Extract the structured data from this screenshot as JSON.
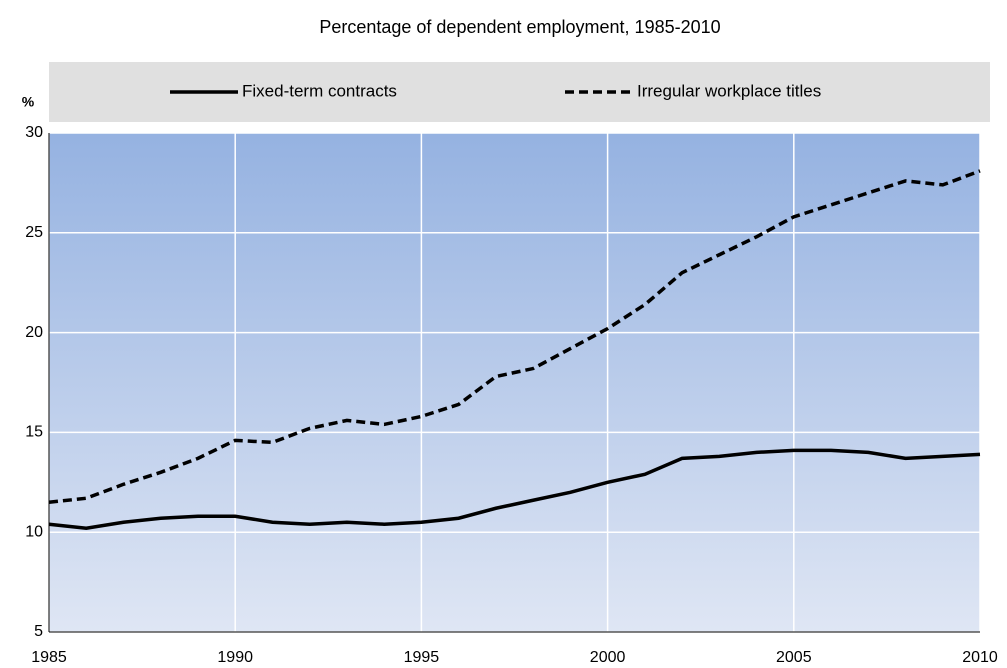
{
  "chart_data": {
    "type": "line",
    "title": "Percentage of dependent employment, 1985-2010",
    "y_label": "%",
    "x": [
      1985,
      1986,
      1987,
      1988,
      1989,
      1990,
      1991,
      1992,
      1993,
      1994,
      1995,
      1996,
      1997,
      1998,
      1999,
      2000,
      2001,
      2002,
      2003,
      2004,
      2005,
      2006,
      2007,
      2008,
      2009,
      2010
    ],
    "series": [
      {
        "name": "Fixed-term contracts",
        "color": "#000000",
        "dash": "solid",
        "values": [
          10.4,
          10.2,
          10.5,
          10.7,
          10.8,
          10.8,
          10.5,
          10.4,
          10.5,
          10.4,
          10.5,
          10.7,
          11.2,
          11.6,
          12.0,
          12.5,
          12.9,
          13.7,
          13.8,
          14.0,
          14.1,
          14.1,
          14.0,
          13.7,
          13.8,
          13.9
        ]
      },
      {
        "name": "Irregular workplace titles",
        "color": "#000000",
        "dash": "dashed",
        "values": [
          11.5,
          11.7,
          12.4,
          13.0,
          13.7,
          14.6,
          14.5,
          15.2,
          15.6,
          15.4,
          15.8,
          16.4,
          17.8,
          18.2,
          19.2,
          20.2,
          21.4,
          23.0,
          23.9,
          24.8,
          25.8,
          26.4,
          27.0,
          27.6,
          27.4,
          28.1
        ]
      }
    ],
    "xlim": [
      1985,
      2010
    ],
    "xticks": [
      1985,
      1990,
      1995,
      2000,
      2005,
      2010
    ],
    "ylim": [
      5,
      30
    ],
    "yticks": [
      5,
      10,
      15,
      20,
      25,
      30
    ],
    "grid": true,
    "legend": "top"
  }
}
